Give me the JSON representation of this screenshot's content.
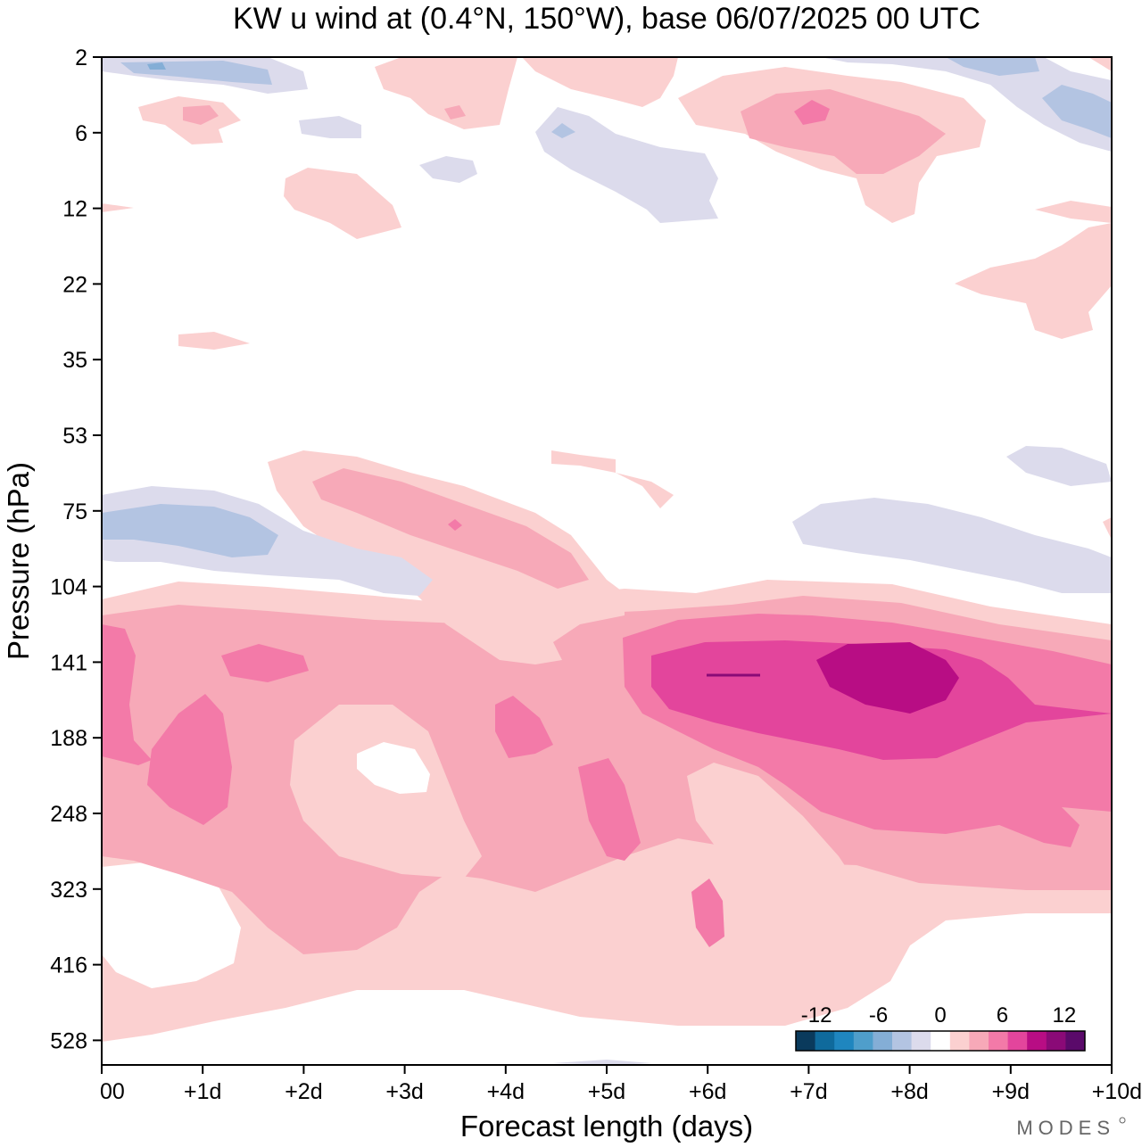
{
  "chart_data": {
    "type": "heatmap",
    "title": "KW u wind at (0.4°N, 150°W),  base 06/07/2025  00 UTC",
    "xlabel": "Forecast length (days)",
    "ylabel": "Pressure (hPa)",
    "x_ticks": [
      "00",
      "+1d",
      "+2d",
      "+3d",
      "+4d",
      "+5d",
      "+6d",
      "+7d",
      "+8d",
      "+9d",
      "+10d"
    ],
    "y_ticks": [
      "2",
      "6",
      "12",
      "22",
      "35",
      "53",
      "75",
      "104",
      "141",
      "188",
      "248",
      "323",
      "416",
      "528"
    ],
    "xlim_days": [
      0,
      10
    ],
    "ylim_hpa": [
      2,
      528
    ],
    "y_scale": "irregular model levels (pressure increases downward)",
    "colorbar": {
      "labels": [
        "-12",
        "-6",
        "0",
        "6",
        "12"
      ],
      "levels": [
        -14,
        -12,
        -10,
        -8,
        -6,
        -4,
        -2,
        0,
        2,
        4,
        6,
        8,
        10,
        12,
        14
      ],
      "colors": [
        "#0a3a5c",
        "#0f6a9c",
        "#1f86bf",
        "#4f9ecb",
        "#84aed6",
        "#b3c4e2",
        "#dcdbec",
        "#ffffff",
        "#fbd0d0",
        "#f7a9b8",
        "#f37aa8",
        "#e3459c",
        "#b80d84",
        "#8a0a77",
        "#5a0a6a"
      ],
      "location": "bottom-right"
    },
    "features": [
      {
        "name": "upper easterly patch",
        "x_days": [
          0.3,
          1.9
        ],
        "p_hpa": [
          2,
          4
        ],
        "min_value": -8
      },
      {
        "name": "upper westerly patches",
        "x_days": [
          6.2,
          8.8
        ],
        "p_hpa": [
          3,
          14
        ],
        "max_value": 8
      },
      {
        "name": "upper easterly patch",
        "x_days": [
          9.2,
          10
        ],
        "p_hpa": [
          3,
          7
        ],
        "min_value": -6
      },
      {
        "name": "lower stratosphere easterlies",
        "x_days": [
          0,
          3.2
        ],
        "p_hpa": [
          68,
          104
        ],
        "min_value": -6
      },
      {
        "name": "lower stratosphere easterlies",
        "x_days": [
          6.8,
          10
        ],
        "p_hpa": [
          70,
          104
        ],
        "min_value": -4
      },
      {
        "name": "descending westerly band",
        "x_days": [
          1.6,
          5.5
        ],
        "p_hpa": [
          55,
          110
        ],
        "max_value": 6
      },
      {
        "name": "upper troposphere westerly maximum",
        "x_days": [
          7.1,
          8.5
        ],
        "p_hpa": [
          130,
          170
        ],
        "max_value": 12
      },
      {
        "name": "upper troposphere westerlies",
        "x_days": [
          5.2,
          10
        ],
        "p_hpa": [
          110,
          270
        ],
        "max_value": 10
      },
      {
        "name": "mid troposphere westerlies",
        "x_days": [
          0,
          10
        ],
        "p_hpa": [
          110,
          480
        ],
        "max_value": 8
      }
    ]
  },
  "brand": "MODES"
}
